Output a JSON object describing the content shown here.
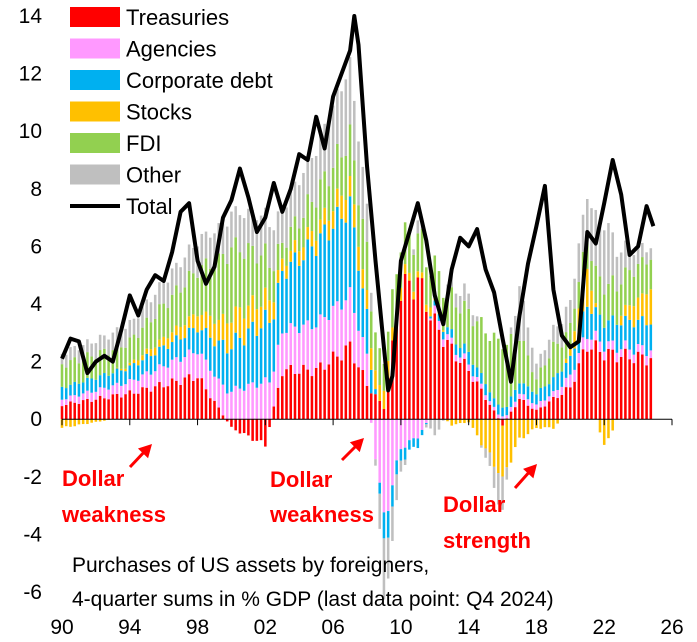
{
  "chart_data": {
    "type": "bar",
    "stacked": true,
    "note_lines": [
      "Purchases of US assets by foreigners,",
      "4-quarter sums in % GDP (last data point: Q4 2024)"
    ],
    "ylim": [
      -6,
      14
    ],
    "yticks": [
      -6,
      -4,
      -2,
      0,
      2,
      4,
      6,
      8,
      10,
      12,
      14
    ],
    "xlim": [
      1990,
      2026
    ],
    "xticks": [
      {
        "v": 1990,
        "label": "90"
      },
      {
        "v": 1994,
        "label": "94"
      },
      {
        "v": 1998,
        "label": "98"
      },
      {
        "v": 2002,
        "label": "02"
      },
      {
        "v": 2006,
        "label": "06"
      },
      {
        "v": 2010,
        "label": "10"
      },
      {
        "v": 2014,
        "label": "14"
      },
      {
        "v": 2018,
        "label": "18"
      },
      {
        "v": 2022,
        "label": "22"
      },
      {
        "v": 2026,
        "label": "26"
      }
    ],
    "legend": {
      "position": "top-left"
    },
    "grid": false,
    "colors": {
      "Treasuries": "#ff0000",
      "Agencies": "#ff99ff",
      "Corporate debt": "#00b0f0",
      "Stocks": "#ffc000",
      "FDI": "#92d050",
      "Other": "#bfbfbf",
      "Total": "#000000"
    },
    "series": [
      {
        "name": "Treasuries",
        "keys": [
          1990,
          1994,
          1998,
          2000,
          2002,
          2003,
          2005,
          2007,
          2008,
          2009,
          2010,
          2011,
          2012,
          2013,
          2014,
          2016,
          2017,
          2018,
          2019,
          2020,
          2021,
          2022,
          2023,
          2024.9
        ],
        "values": [
          0.5,
          0.9,
          1.5,
          -0.3,
          -0.9,
          1.7,
          1.7,
          2.5,
          1.2,
          0.4,
          4.5,
          4.8,
          3.3,
          2.4,
          1.7,
          -0.2,
          0.7,
          0.3,
          0.7,
          1.1,
          2.6,
          2.3,
          2.2,
          2.1
        ]
      },
      {
        "name": "Agencies",
        "keys": [
          1990,
          1994,
          1998,
          2000,
          2002,
          2003,
          2005,
          2007,
          2008,
          2009,
          2010,
          2011,
          2012,
          2013,
          2014,
          2016,
          2017,
          2018,
          2019,
          2020,
          2021,
          2022,
          2023,
          2024.9
        ],
        "values": [
          0.2,
          0.4,
          0.9,
          1.0,
          1.3,
          1.4,
          1.6,
          1.8,
          1.0,
          -3.5,
          -1.0,
          -0.6,
          0.3,
          0.2,
          0.2,
          0.1,
          0.2,
          0.2,
          0.2,
          0.4,
          0.4,
          0.3,
          0.3,
          0.3
        ]
      },
      {
        "name": "Corporate debt",
        "keys": [
          1990,
          1994,
          1998,
          2000,
          2002,
          2003,
          2005,
          2007,
          2008,
          2009,
          2010,
          2011,
          2012,
          2013,
          2014,
          2016,
          2017,
          2018,
          2019,
          2020,
          2021,
          2022,
          2023,
          2024.9
        ],
        "values": [
          0.4,
          0.5,
          0.8,
          1.6,
          2.1,
          2.0,
          2.8,
          3.1,
          1.4,
          -1.0,
          -0.4,
          -0.3,
          0.2,
          0.3,
          0.4,
          0.3,
          0.4,
          0.4,
          0.5,
          0.6,
          1.0,
          0.8,
          0.9,
          1.0
        ]
      },
      {
        "name": "Stocks",
        "keys": [
          1990,
          1994,
          1998,
          2000,
          2002,
          2003,
          2005,
          2007,
          2008,
          2009,
          2010,
          2011,
          2012,
          2013,
          2014,
          2016,
          2017,
          2018,
          2019,
          2020,
          2021,
          2022,
          2023,
          2024.9
        ],
        "values": [
          -0.3,
          0.1,
          0.5,
          1.0,
          0.8,
          0.4,
          0.5,
          0.8,
          0.7,
          0.6,
          0.4,
          0.2,
          0.3,
          -0.2,
          -0.1,
          -2.0,
          -0.7,
          -0.3,
          -0.3,
          0.3,
          1.3,
          -1.0,
          0.3,
          1.2
        ]
      },
      {
        "name": "FDI",
        "keys": [
          1990,
          1994,
          1998,
          2000,
          2002,
          2003,
          2005,
          2007,
          2008,
          2009,
          2010,
          2011,
          2012,
          2013,
          2014,
          2016,
          2017,
          2018,
          2019,
          2020,
          2021,
          2022,
          2023,
          2024.9
        ],
        "values": [
          0.8,
          0.8,
          1.5,
          2.4,
          1.5,
          0.6,
          1.2,
          1.6,
          1.6,
          1.0,
          1.4,
          1.4,
          1.2,
          1.3,
          1.4,
          2.3,
          1.6,
          0.5,
          1.1,
          0.8,
          1.1,
          1.3,
          1.2,
          1.1
        ]
      },
      {
        "name": "Other",
        "keys": [
          1990,
          1994,
          1998,
          2000,
          2002,
          2003,
          2005,
          2007,
          2008,
          2009,
          2010,
          2011,
          2012,
          2013,
          2014,
          2016,
          2017,
          2018,
          2019,
          2020,
          2021,
          2022,
          2023,
          2024.9
        ],
        "values": [
          0.4,
          0.6,
          1.0,
          1.2,
          1.4,
          1.2,
          1.6,
          2.5,
          1.5,
          -2.0,
          -0.4,
          0.4,
          -0.6,
          0.5,
          0.6,
          -1.2,
          1.7,
          0.5,
          0.6,
          0.9,
          1.5,
          2.2,
          1.0,
          0.3
        ]
      },
      {
        "name": "Total",
        "type": "line",
        "x": [
          1990,
          1990.5,
          1991,
          1991.5,
          1992,
          1992.5,
          1993,
          1993.5,
          1994,
          1994.5,
          1995,
          1995.5,
          1996,
          1996.5,
          1997,
          1997.5,
          1998,
          1998.5,
          1999,
          1999.5,
          2000,
          2000.5,
          2001,
          2001.5,
          2002,
          2002.5,
          2003,
          2003.5,
          2004,
          2004.5,
          2005,
          2005.5,
          2006,
          2006.5,
          2007,
          2007.25,
          2007.5,
          2008,
          2008.5,
          2009,
          2009.25,
          2009.5,
          2010,
          2010.5,
          2011,
          2011.5,
          2012,
          2012.5,
          2013,
          2013.5,
          2014,
          2014.5,
          2015,
          2015.5,
          2016,
          2016.5,
          2017,
          2017.5,
          2018,
          2018.5,
          2019,
          2019.5,
          2020,
          2020.5,
          2021,
          2021.5,
          2022,
          2022.5,
          2023,
          2023.5,
          2024,
          2024.5,
          2024.9
        ],
        "y": [
          2.1,
          2.8,
          2.7,
          1.6,
          2.0,
          2.2,
          2.0,
          3.1,
          4.3,
          3.6,
          4.5,
          5.0,
          4.8,
          5.8,
          7.2,
          7.5,
          5.5,
          4.7,
          5.3,
          7.0,
          7.6,
          8.7,
          7.7,
          6.5,
          7.0,
          8.2,
          7.2,
          8.0,
          9.2,
          9.0,
          10.5,
          9.4,
          11.2,
          12.0,
          12.8,
          14.0,
          13.0,
          8.8,
          5.5,
          2.5,
          1.0,
          1.5,
          5.5,
          6.5,
          7.5,
          6.2,
          4.3,
          3.3,
          5.2,
          6.3,
          6.0,
          6.6,
          5.2,
          4.4,
          2.8,
          1.3,
          3.6,
          5.4,
          6.7,
          8.1,
          4.5,
          2.9,
          2.5,
          2.7,
          6.5,
          6.1,
          7.5,
          9.0,
          7.8,
          5.7,
          6.0,
          7.4,
          6.7
        ]
      }
    ],
    "annotations": [
      {
        "lines": [
          "Dollar",
          "weakness"
        ]
      },
      {
        "lines": [
          "Dollar",
          "weakness"
        ]
      },
      {
        "lines": [
          "Dollar",
          "strength"
        ]
      }
    ]
  }
}
